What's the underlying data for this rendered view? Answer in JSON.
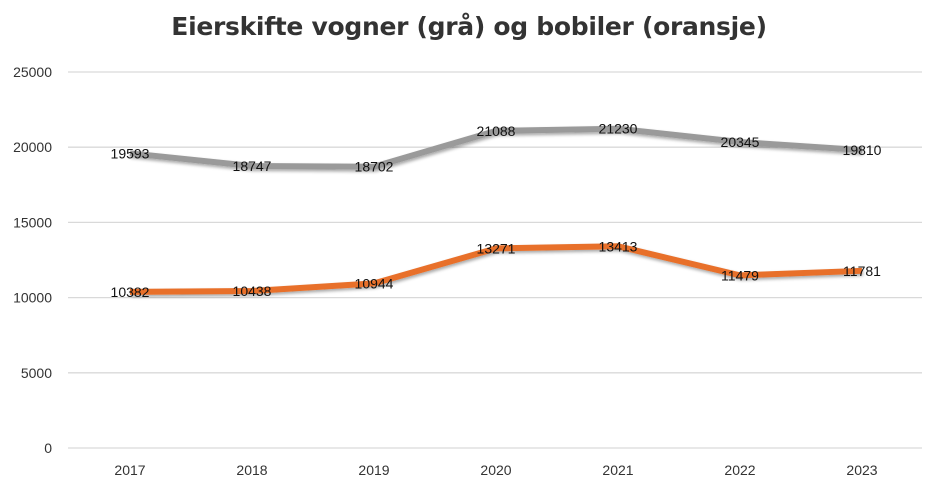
{
  "chart_data": {
    "type": "line",
    "title": "Eierskifte vogner (grå) og bobiler (oransje)",
    "xlabel": "",
    "ylabel": "",
    "categories": [
      "2017",
      "2018",
      "2019",
      "2020",
      "2021",
      "2022",
      "2023"
    ],
    "series": [
      {
        "name": "vogner",
        "color": "#9a9a9a",
        "values": [
          19593,
          18747,
          18702,
          21088,
          21230,
          20345,
          19810
        ],
        "labels": [
          "19593",
          "18747",
          "18702",
          "21088",
          "21230",
          "20345",
          "19810"
        ]
      },
      {
        "name": "bobiler",
        "color": "#e8702a",
        "values": [
          10382,
          10438,
          10944,
          13271,
          13413,
          11479,
          11781
        ],
        "labels": [
          "10382",
          "10438",
          "10944",
          "13271",
          "13413",
          "11479",
          "11781"
        ]
      }
    ],
    "ylim": [
      0,
      25000
    ],
    "yticks": [
      0,
      5000,
      10000,
      15000,
      20000,
      25000
    ],
    "ytick_labels": [
      "0",
      "5000",
      "10000",
      "15000",
      "20000",
      "25000"
    ],
    "grid": true,
    "legend": "none",
    "gridline_color": "#d9d9d9"
  }
}
